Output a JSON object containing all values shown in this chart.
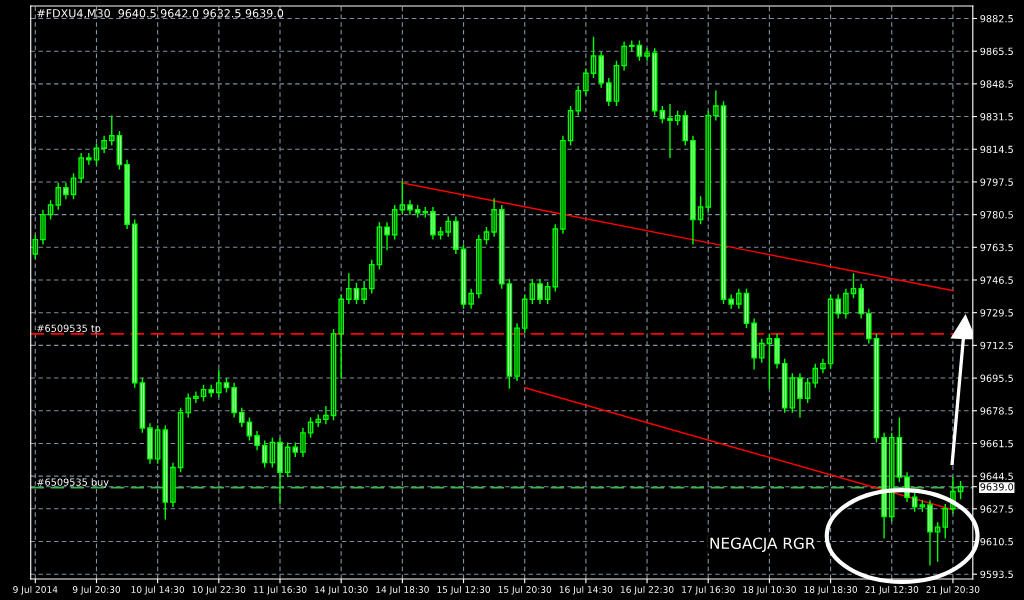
{
  "chart_data": {
    "type": "candlestick",
    "title": "#FDXU4,M30  9640.5 9642.0 9632.5 9639.0",
    "categories": [
      "9 Jul 2014",
      null,
      null,
      null,
      null,
      null,
      null,
      null,
      "9 Jul 20:30",
      null,
      null,
      null,
      null,
      null,
      null,
      null,
      "10 Jul 14:30",
      null,
      null,
      null,
      null,
      null,
      null,
      null,
      "10 Jul 22:30",
      null,
      null,
      null,
      null,
      null,
      null,
      null,
      "11 Jul 16:30",
      null,
      null,
      null,
      null,
      null,
      null,
      null,
      "14 Jul 10:30",
      null,
      null,
      null,
      null,
      null,
      null,
      null,
      "14 Jul 18:30",
      null,
      null,
      null,
      null,
      null,
      null,
      null,
      "15 Jul 12:30",
      null,
      null,
      null,
      null,
      null,
      null,
      null,
      "15 Jul 20:30",
      null,
      null,
      null,
      null,
      null,
      null,
      null,
      "16 Jul 14:30",
      null,
      null,
      null,
      null,
      null,
      null,
      null,
      "16 Jul 22:30",
      null,
      null,
      null,
      null,
      null,
      null,
      null,
      "17 Jul 16:30",
      null,
      null,
      null,
      null,
      null,
      null,
      null,
      "18 Jul 10:30",
      null,
      null,
      null,
      null,
      null,
      null,
      null,
      "18 Jul 18:30",
      null,
      null,
      null,
      null,
      null,
      null,
      null,
      "21 Jul 12:30",
      null,
      null,
      null,
      null,
      null,
      null,
      null,
      "21 Jul 20:30",
      null
    ],
    "color": "#00ff00",
    "ohlc": [
      [
        9760,
        9770,
        9757.5,
        9767.5
      ],
      [
        9767.5,
        9783,
        9765,
        9780.5
      ],
      [
        9780.5,
        9788,
        9778,
        9785.5
      ],
      [
        9785.5,
        9797,
        9783,
        9794.5
      ],
      [
        9794.5,
        9797,
        9788.5,
        9791
      ],
      [
        9791,
        9802,
        9788.5,
        9799.5
      ],
      [
        9799.5,
        9812.5,
        9797,
        9810
      ],
      [
        9810,
        9812.5,
        9806.5,
        9809
      ],
      [
        9809,
        9817.5,
        9806.5,
        9815
      ],
      [
        9815,
        9821.5,
        9812.5,
        9819
      ],
      [
        9819,
        9832,
        9816.5,
        9821.5
      ],
      [
        9821.5,
        9824,
        9804,
        9806.5
      ],
      [
        9806.5,
        9809,
        9773,
        9775.5
      ],
      [
        9775.5,
        9778,
        9690.5,
        9693
      ],
      [
        9693,
        9695.5,
        9667,
        9669.5
      ],
      [
        9669.5,
        9672,
        9651,
        9653.5
      ],
      [
        9653.5,
        9671,
        9651,
        9668.5
      ],
      [
        9668.5,
        9671,
        9622,
        9631
      ],
      [
        9631,
        9651.5,
        9628.5,
        9649
      ],
      [
        9649,
        9680,
        9646.5,
        9677.5
      ],
      [
        9677.5,
        9687.5,
        9675,
        9685
      ],
      [
        9685,
        9688.5,
        9682.5,
        9686
      ],
      [
        9686,
        9692,
        9683.5,
        9689.5
      ],
      [
        9689.5,
        9692,
        9685.5,
        9688
      ],
      [
        9688,
        9700,
        9685.5,
        9693
      ],
      [
        9693,
        9695.5,
        9688,
        9690.5
      ],
      [
        9690.5,
        9693,
        9675,
        9677.5
      ],
      [
        9677.5,
        9680,
        9670,
        9672.5
      ],
      [
        9672.5,
        9675,
        9663,
        9665.5
      ],
      [
        9665.5,
        9668,
        9658,
        9660.5
      ],
      [
        9660.5,
        9663,
        9649,
        9651.5
      ],
      [
        9651.5,
        9664.5,
        9649,
        9662
      ],
      [
        9662,
        9664.5,
        9630,
        9646.5
      ],
      [
        9646.5,
        9662,
        9644,
        9659.5
      ],
      [
        9659.5,
        9662,
        9654.5,
        9657
      ],
      [
        9657,
        9669.5,
        9654.5,
        9667
      ],
      [
        9667,
        9675,
        9664.5,
        9672.5
      ],
      [
        9672.5,
        9676.5,
        9670,
        9674
      ],
      [
        9674,
        9681,
        9671.5,
        9676
      ],
      [
        9676,
        9721,
        9673.5,
        9718.5
      ],
      [
        9718.5,
        9739,
        9695,
        9736.5
      ],
      [
        9736.5,
        9750,
        9734,
        9742
      ],
      [
        9742,
        9745,
        9734,
        9736.5
      ],
      [
        9736.5,
        9746,
        9734,
        9742
      ],
      [
        9742,
        9757,
        9739.5,
        9754.5
      ],
      [
        9754.5,
        9776.5,
        9752,
        9774
      ],
      [
        9774,
        9776.5,
        9762,
        9770
      ],
      [
        9770,
        9785.5,
        9767.5,
        9783
      ],
      [
        9783,
        9798,
        9780.5,
        9785.5
      ],
      [
        9785.5,
        9788,
        9780.5,
        9783
      ],
      [
        9783,
        9785.5,
        9779,
        9781.5
      ],
      [
        9781.5,
        9784.5,
        9779,
        9782
      ],
      [
        9782,
        9784.5,
        9767.5,
        9770
      ],
      [
        9770,
        9774,
        9767.5,
        9771.5
      ],
      [
        9771.5,
        9779.5,
        9769,
        9777
      ],
      [
        9777,
        9779.5,
        9760,
        9762.5
      ],
      [
        9762.5,
        9765,
        9731.5,
        9734
      ],
      [
        9734,
        9742,
        9731.5,
        9739.5
      ],
      [
        9739.5,
        9770,
        9737,
        9767.5
      ],
      [
        9767.5,
        9774,
        9765,
        9771.5
      ],
      [
        9771.5,
        9789,
        9769,
        9783
      ],
      [
        9783,
        9785.5,
        9742,
        9744.5
      ],
      [
        9744.5,
        9747,
        9690,
        9696.5
      ],
      [
        9696.5,
        9724,
        9694,
        9721.5
      ],
      [
        9721.5,
        9739,
        9719,
        9736.5
      ],
      [
        9736.5,
        9747,
        9734,
        9744.5
      ],
      [
        9744.5,
        9747,
        9734,
        9736.5
      ],
      [
        9736.5,
        9745.5,
        9734,
        9743
      ],
      [
        9743,
        9775.5,
        9740.5,
        9773
      ],
      [
        9773,
        9821.5,
        9770.5,
        9819
      ],
      [
        9819,
        9837,
        9816.5,
        9834.5
      ],
      [
        9834.5,
        9847.5,
        9832,
        9845
      ],
      [
        9845,
        9856.5,
        9842.5,
        9854
      ],
      [
        9854,
        9873,
        9851.5,
        9863
      ],
      [
        9863,
        9865.5,
        9846.5,
        9849
      ],
      [
        9849,
        9851.5,
        9837,
        9839.5
      ],
      [
        9839.5,
        9860.5,
        9837,
        9858
      ],
      [
        9858,
        9870.5,
        9855.5,
        9868
      ],
      [
        9868,
        9871,
        9865.5,
        9868.5
      ],
      [
        9868.5,
        9871,
        9860.5,
        9863
      ],
      [
        9863,
        9867,
        9860.5,
        9864.5
      ],
      [
        9864.5,
        9867,
        9832,
        9834.5
      ],
      [
        9834.5,
        9837,
        9828,
        9830.5
      ],
      [
        9830.5,
        9838,
        9810,
        9829.5
      ],
      [
        9829.5,
        9834.5,
        9827,
        9832
      ],
      [
        9832,
        9834.5,
        9816.5,
        9819
      ],
      [
        9819,
        9821.5,
        9765,
        9778
      ],
      [
        9778,
        9790,
        9775.5,
        9784.5
      ],
      [
        9784.5,
        9834.5,
        9782,
        9832
      ],
      [
        9832,
        9845,
        9829.5,
        9837
      ],
      [
        9837,
        9839.5,
        9734,
        9736.5
      ],
      [
        9736.5,
        9739,
        9731.5,
        9734
      ],
      [
        9734,
        9742,
        9731.5,
        9739.5
      ],
      [
        9739.5,
        9742,
        9721.5,
        9724
      ],
      [
        9724,
        9726.5,
        9700,
        9706
      ],
      [
        9706,
        9716,
        9703.5,
        9713.5
      ],
      [
        9713.5,
        9718.5,
        9690,
        9716
      ],
      [
        9716,
        9718.5,
        9700.5,
        9703
      ],
      [
        9703,
        9705.5,
        9677.5,
        9680
      ],
      [
        9680,
        9698,
        9677.5,
        9695.5
      ],
      [
        9695.5,
        9698,
        9675,
        9685
      ],
      [
        9685,
        9695.5,
        9682.5,
        9693
      ],
      [
        9693,
        9703,
        9690.5,
        9700.5
      ],
      [
        9700.5,
        9705.5,
        9698,
        9703
      ],
      [
        9703,
        9739,
        9700.5,
        9736.5
      ],
      [
        9736.5,
        9739,
        9726.5,
        9729
      ],
      [
        9729,
        9742,
        9726.5,
        9739.5
      ],
      [
        9739.5,
        9750,
        9737,
        9742
      ],
      [
        9742,
        9744.5,
        9726.5,
        9729
      ],
      [
        9729,
        9731.5,
        9713.5,
        9716
      ],
      [
        9716,
        9718.5,
        9662,
        9664.5
      ],
      [
        9664.5,
        9667,
        9612,
        9623.5
      ],
      [
        9623.5,
        9667,
        9621,
        9664.5
      ],
      [
        9664.5,
        9675,
        9641.5,
        9644
      ],
      [
        9644,
        9646.5,
        9631,
        9633.5
      ],
      [
        9633.5,
        9636,
        9626,
        9628.5
      ],
      [
        9628.5,
        9632,
        9626,
        9629.5
      ],
      [
        9629.5,
        9632,
        9598,
        9615.5
      ],
      [
        9615.5,
        9620.5,
        9600,
        9618
      ],
      [
        9618,
        9630,
        9612,
        9627.5
      ],
      [
        9627.5,
        9644,
        9625,
        9636.5
      ],
      [
        9636.5,
        9642,
        9632.5,
        9639
      ]
    ],
    "series": [
      {
        "type": "line",
        "color": "#ff0000",
        "x": [
          "14 Jul 18:30",
          "21 Jul 20:30"
        ],
        "values": [
          9797,
          9741
        ]
      },
      {
        "type": "line",
        "color": "#ff0000",
        "x": [
          "15 Jul 20:30",
          "21 Jul 20:30"
        ],
        "values": [
          9690.5,
          9627
        ]
      }
    ],
    "ref_lines": [
      {
        "axis": "y",
        "value": 9718.5,
        "label": "#6509535 tp",
        "color": "#ff0000",
        "line_style": "dashed"
      },
      {
        "axis": "y",
        "value": 9638.5,
        "label": "#6509535 buy",
        "color": "#3cb44b",
        "line_style": "dashed"
      }
    ],
    "ylim": [
      9591,
      9889
    ],
    "yticks": [
      9593.5,
      9610.5,
      9627.5,
      9644.5,
      9661.5,
      9678.5,
      9695.5,
      9712.5,
      9729.5,
      9746.5,
      9763.5,
      9780.5,
      9797.5,
      9814.5,
      9831.5,
      9848.5,
      9865.5,
      9882.5,
      {
        "value": 9639.0,
        "label": "9639.0"
      }
    ],
    "grid": true,
    "legend": false,
    "annotations": [
      "NEGACJA RGR"
    ]
  }
}
